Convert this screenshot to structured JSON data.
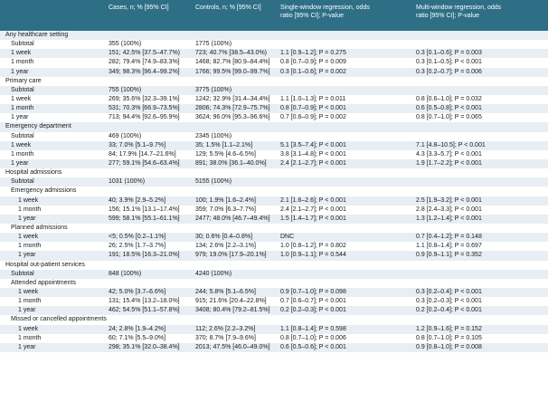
{
  "header": {
    "cases": "Cases, n; % [95% CI]",
    "controls": "Controls, n; % [95% CI]",
    "single_l1": "Single-window regression, odds",
    "single_l2": "ratio [95% CI]; P-value",
    "multi_l1": "Multi-window regression, odds",
    "multi_l2": "ratio [95% CI]; P-value"
  },
  "rows": [
    {
      "label": "Any healthcare setting",
      "indent": 0,
      "cases": "",
      "controls": "",
      "single": "",
      "multi": ""
    },
    {
      "label": "Subtotal",
      "indent": 1,
      "cases": "355 (100%)",
      "controls": "1775 (100%)",
      "single": "",
      "multi": ""
    },
    {
      "label": "1 week",
      "indent": 1,
      "cases": "151; 42.5% [37.5–47.7%)",
      "controls": "723; 40.7% [38.5–43.0%)",
      "single": "1.1 [0.9–1.2]; P = 0.275",
      "multi": "0.3 [0.1–0.6]; P = 0.003"
    },
    {
      "label": "1 month",
      "indent": 1,
      "cases": "282; 79.4% [74.9–83.3%]",
      "controls": "1468; 82.7% [80.9–84.4%]",
      "single": "0.8 [0.7–0.9]; P = 0.009",
      "multi": "0.3 [0.1–0.5]; P < 0.001"
    },
    {
      "label": "1 year",
      "indent": 1,
      "cases": "349; 98.3% [96.4–99.2%]",
      "controls": "1766; 99.5% [99.0–99.7%]",
      "single": "0.3 [0.1–0.6]; P = 0.002",
      "multi": "0.3 [0.2–0.7]; P = 0.006"
    },
    {
      "label": "Primary care",
      "indent": 0,
      "cases": "",
      "controls": "",
      "single": "",
      "multi": ""
    },
    {
      "label": "Subtotal",
      "indent": 1,
      "cases": "755 (100%)",
      "controls": "3775 (100%)",
      "single": "",
      "multi": ""
    },
    {
      "label": "1 week",
      "indent": 1,
      "cases": "269; 35.6% [32.3–39.1%]",
      "controls": "1242; 32.9% [31.4–34.4%]",
      "single": "1.1 [1.0–1.3]; P = 0.011",
      "multi": "0.8 [0.6–1.0]; P = 0.032"
    },
    {
      "label": "1 month",
      "indent": 1,
      "cases": "531; 70.3% [66.9–73.5%]",
      "controls": "2806; 74.3% [72.9–75.7%]",
      "single": "0.8 [0.7–0.9]; P < 0.001",
      "multi": "0.6 [0.5–0.8]; P < 0.001"
    },
    {
      "label": "1 year",
      "indent": 1,
      "cases": "713; 94.4% [92.6–95.9%]",
      "controls": "3624; 96.0% [95.3–96.6%]",
      "single": "0.7 [0.6–0.9]; P = 0.002",
      "multi": "0.8 [0.7–1.0]; P = 0.065"
    },
    {
      "label": "Emergency department",
      "indent": 0,
      "cases": "",
      "controls": "",
      "single": "",
      "multi": ""
    },
    {
      "label": "Subtotal",
      "indent": 1,
      "cases": "469 (100%)",
      "controls": "2345 (100%)",
      "single": "",
      "multi": ""
    },
    {
      "label": "1 week",
      "indent": 1,
      "cases": "33; 7.0% [5.1–9.7%]",
      "controls": "35; 1.5% [1.1–2.1%]",
      "single": "5.1 [3.5–7.4]; P < 0.001",
      "multi": "7.1 [4.8–10.5]; P < 0.001"
    },
    {
      "label": "1 month",
      "indent": 1,
      "cases": "84; 17.9% [14.7–21.6%]",
      "controls": "129; 5.5% [4.6–6.5%]",
      "single": "3.8 [3.1–4.8]; P < 0.001",
      "multi": "4.3 [3.3–5.7]; P < 0.001"
    },
    {
      "label": "1 year",
      "indent": 1,
      "cases": "277; 59.1% [54.6–63.4%]",
      "controls": "891; 38.0% [36.1–40.0%]",
      "single": "2.4 [2.1–2.7]; P < 0.001",
      "multi": "1.9 [1.7–2.2]; P < 0.001"
    },
    {
      "label": "Hospital admissions",
      "indent": 0,
      "cases": "",
      "controls": "",
      "single": "",
      "multi": ""
    },
    {
      "label": "Subtotal",
      "indent": 1,
      "cases": "1031 (100%)",
      "controls": "5155 (100%)",
      "single": "",
      "multi": ""
    },
    {
      "label": "Emergency admissions",
      "indent": 1,
      "cases": "",
      "controls": "",
      "single": "",
      "multi": ""
    },
    {
      "label": "1 week",
      "indent": 2,
      "cases": "40; 3.9% [2.9–5.2%]",
      "controls": "100; 1.9% [1.6–2.4%]",
      "single": "2.1 [1.6–2.6]; P < 0.001",
      "multi": "2.5 [1.9–3.2]; P < 0.001"
    },
    {
      "label": "1 month",
      "indent": 2,
      "cases": "156; 15.1% [13.1–17.4%]",
      "controls": "359; 7.0% [6.3–7.7%]",
      "single": "2.4 [2.1–2.7]; P < 0.001",
      "multi": "2.8 [2.4–3.3]; P < 0.001"
    },
    {
      "label": "1 year",
      "indent": 2,
      "cases": "599; 58.1% [55.1–61.1%]",
      "controls": "2477; 48.0% [46.7–49.4%]",
      "single": "1.5 [1.4–1.7]; P < 0.001",
      "multi": "1.3 [1.2–1.4]; P < 0.001"
    },
    {
      "label": "Planned admissions",
      "indent": 1,
      "cases": "",
      "controls": "",
      "single": "",
      "multi": ""
    },
    {
      "label": "1 week",
      "indent": 2,
      "cases": "<5; 0.5% [0.2–1.1%]",
      "controls": "30; 0.6% [0.4–0.8%]",
      "single": "DNC",
      "multi": "0.7 [0.4–1.2]; P = 0.148"
    },
    {
      "label": "1 month",
      "indent": 2,
      "cases": "26; 2.5% [1.7–3.7%]",
      "controls": "134; 2.6% [2.2–3.1%]",
      "single": "1.0 [0.8–1.2]; P = 0.802",
      "multi": "1.1 [0.8–1.4]; P = 0.697"
    },
    {
      "label": "1 year",
      "indent": 2,
      "cases": "191; 18.5% [16.3–21.0%]",
      "controls": "979; 19.0% [17.9–20.1%]",
      "single": "1.0 [0.9–1.1]; P = 0.544",
      "multi": "0.9 [0.9–1.1]; P = 0.352"
    },
    {
      "label": "Hospital out-patient services",
      "indent": 0,
      "cases": "",
      "controls": "",
      "single": "",
      "multi": ""
    },
    {
      "label": "Subtotal",
      "indent": 1,
      "cases": "848 (100%)",
      "controls": "4240 (100%)",
      "single": "",
      "multi": ""
    },
    {
      "label": "Attended appointments",
      "indent": 1,
      "cases": "",
      "controls": "",
      "single": "",
      "multi": ""
    },
    {
      "label": "1 week",
      "indent": 2,
      "cases": "42; 5.0% [3.7–6.6%]",
      "controls": "244; 5.8% [5.1–6.5%]",
      "single": "0.9 [0.7–1.0]; P = 0.098",
      "multi": "0.3 [0.2–0.4]; P < 0.001"
    },
    {
      "label": "1 month",
      "indent": 2,
      "cases": "131; 15.4% [13.2–18.0%]",
      "controls": "915; 21.6% [20.4–22.8%]",
      "single": "0.7 [0.6–0.7]; P < 0.001",
      "multi": "0.3 [0.2–0.3]; P < 0.001"
    },
    {
      "label": "1 year",
      "indent": 2,
      "cases": "462; 54.5% [51.1–57.8%]",
      "controls": "3408; 80.4% [79.2–81.5%]",
      "single": "0.2 [0.2–0.3]; P < 0.001",
      "multi": "0.2 [0.2–0.4]; P < 0.001"
    },
    {
      "label": "Missed or cancelled appointments",
      "indent": 1,
      "cases": "",
      "controls": "",
      "single": "",
      "multi": ""
    },
    {
      "label": "1 week",
      "indent": 2,
      "cases": "24; 2.8% [1.9–4.2%]",
      "controls": "112; 2.6% [2.2–3.2%]",
      "single": "1.1 [0.8–1.4]; P = 0.598",
      "multi": "1.2 [0.9–1.6]; P = 0.152"
    },
    {
      "label": "1 month",
      "indent": 2,
      "cases": "60; 7.1% [5.5–9.0%]",
      "controls": "370; 8.7% [7.9–9.6%]",
      "single": "0.8 [0.7–1.0]; P = 0.006",
      "multi": "0.8 [0.7–1.0]; P = 0.105"
    },
    {
      "label": "1 year",
      "indent": 2,
      "cases": "298; 35.1% [32.0–38.4%]",
      "controls": "2013; 47.5% [46.0–49.0%]",
      "single": "0.6 [0.5–0.6]; P < 0.001",
      "multi": "0.9 [0.8–1.0]; P = 0.008"
    }
  ]
}
